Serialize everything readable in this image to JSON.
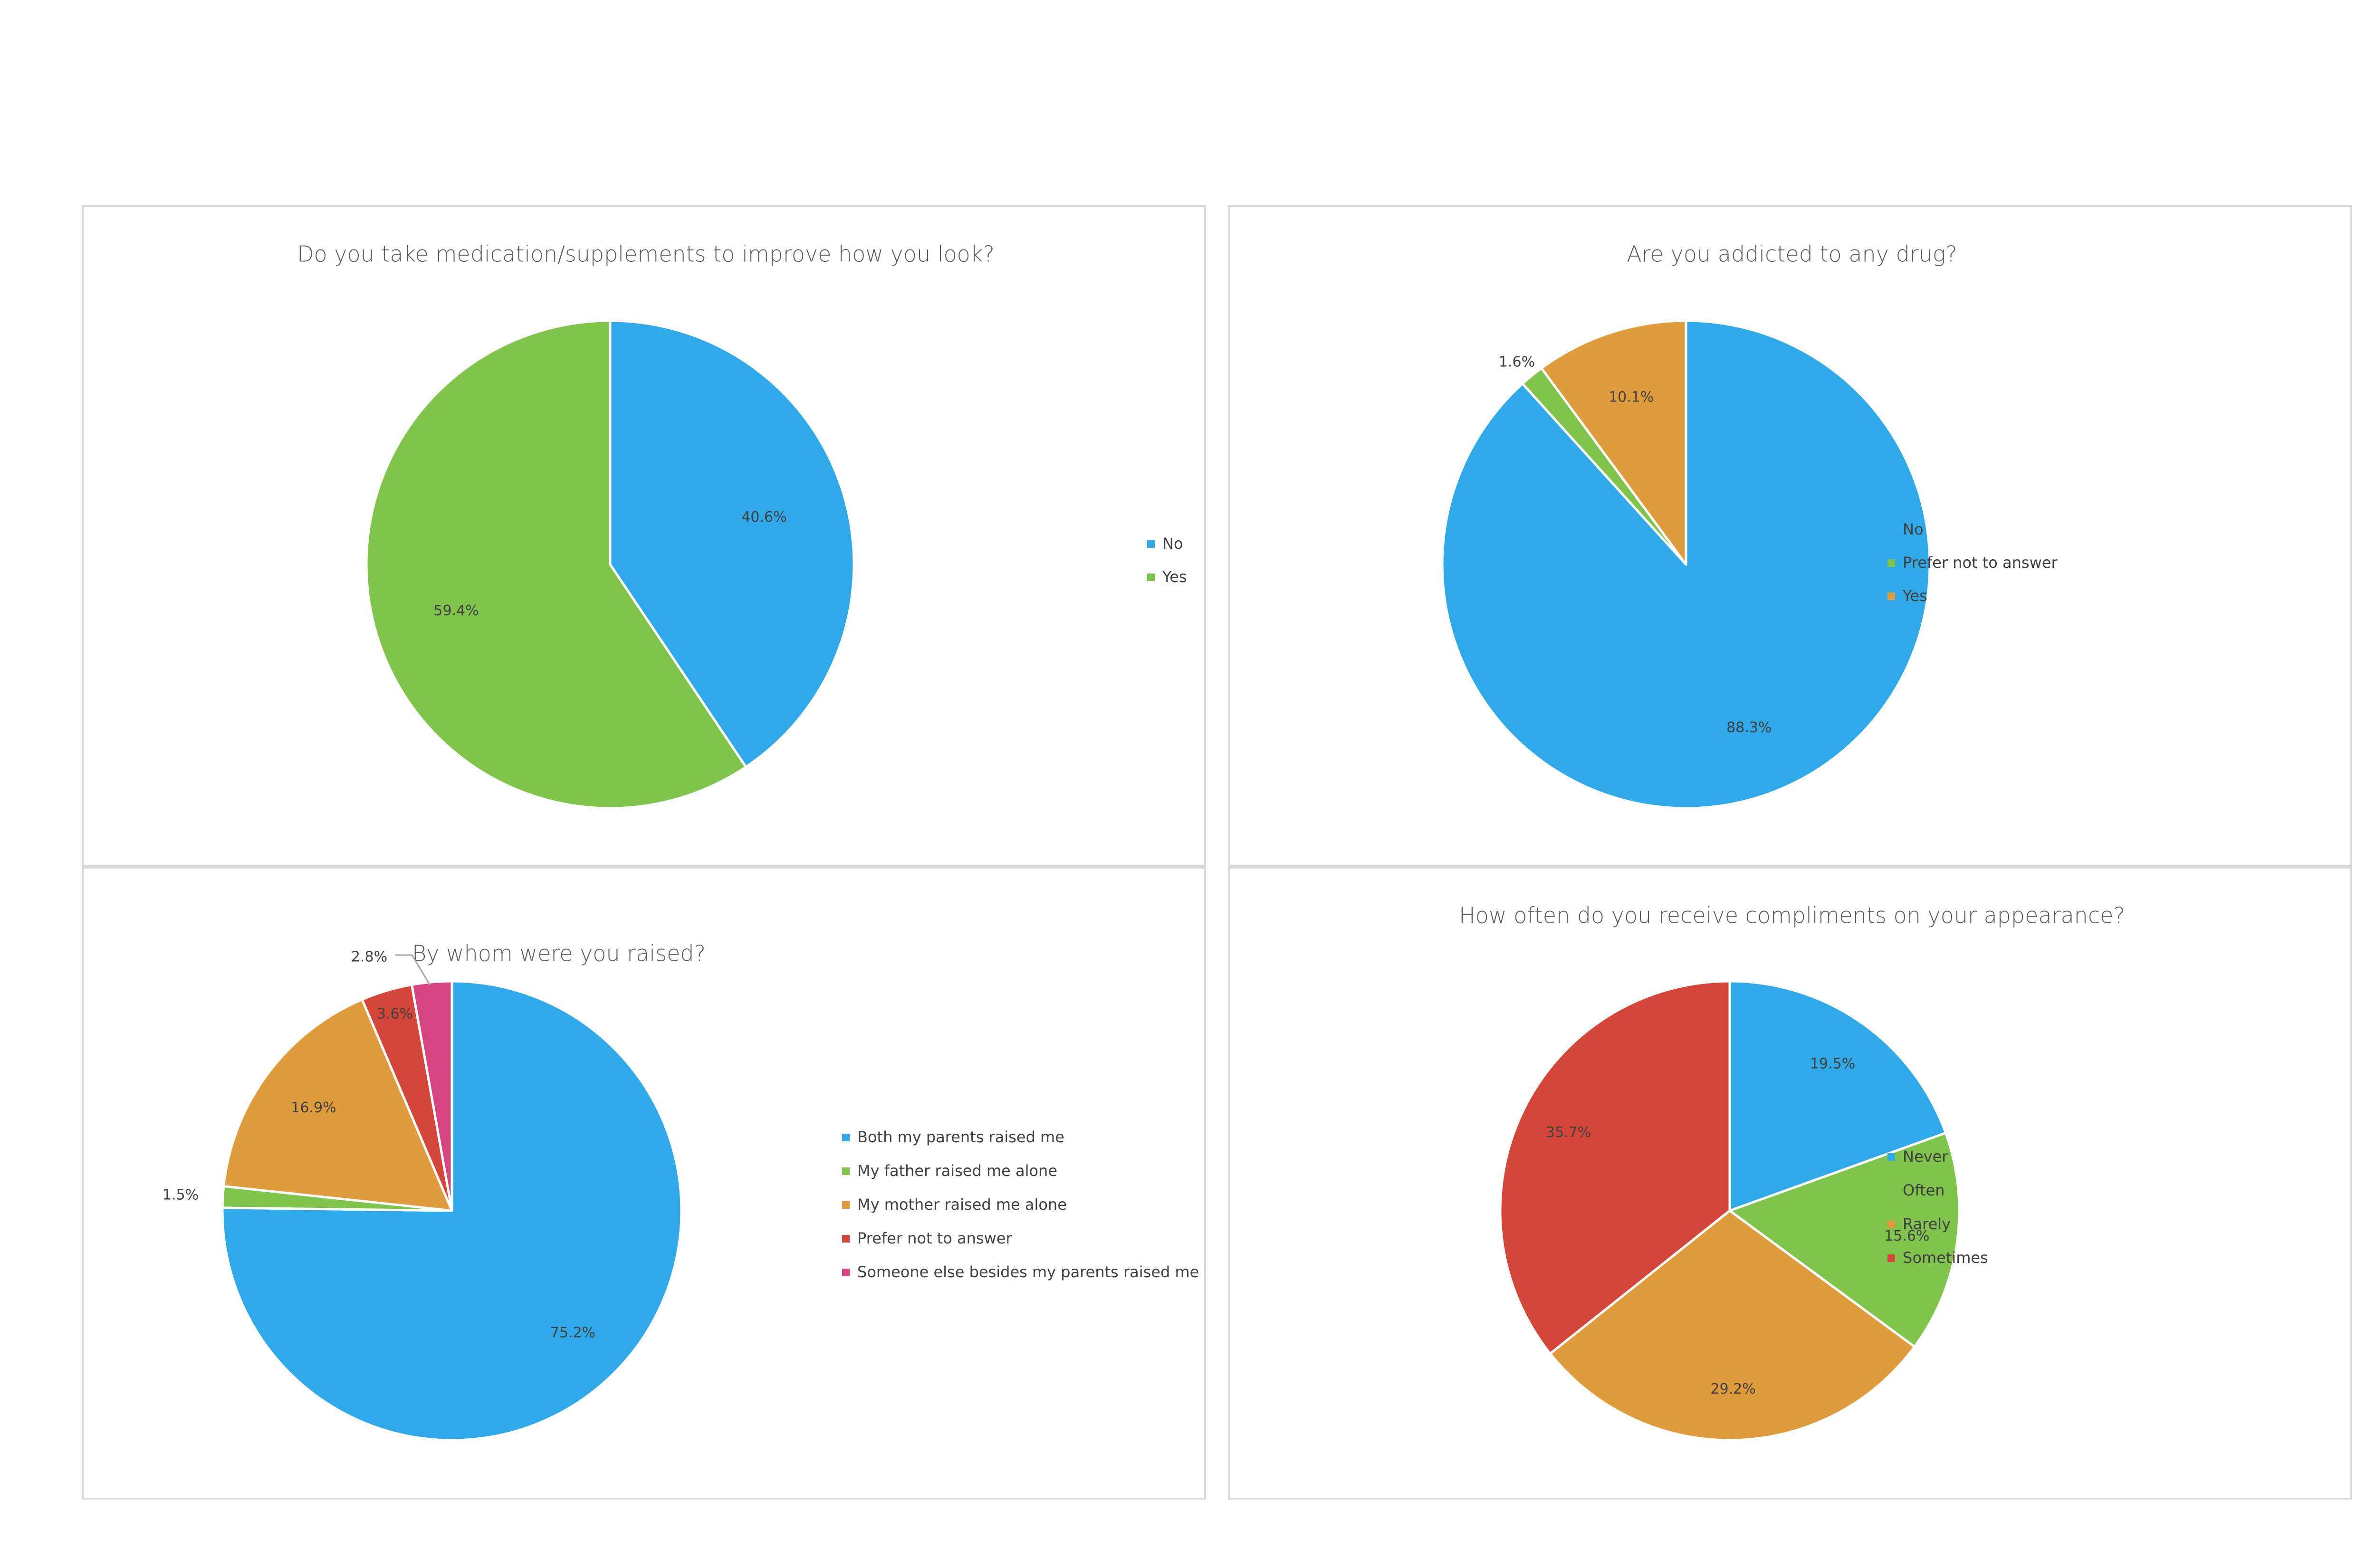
{
  "chart_data": [
    {
      "type": "pie",
      "title": "Do you take medication/supplements to improve how you look?",
      "categories": [
        "No",
        "Yes"
      ],
      "values": [
        40.6,
        59.4
      ],
      "labels": [
        "40.6%",
        "59.4%"
      ],
      "colors": [
        "#31a9e9",
        "#80c34d"
      ],
      "legend": "right"
    },
    {
      "type": "pie",
      "title": "Are you addicted to any drug?",
      "categories": [
        "No",
        "Prefer not to answer",
        "Yes"
      ],
      "values": [
        88.3,
        1.6,
        10.1
      ],
      "labels": [
        "88.3%",
        "1.6%",
        "10.1%"
      ],
      "colors": [
        "#31a9e9",
        "#80c34d",
        "#e09b3d"
      ],
      "legend": "right"
    },
    {
      "type": "pie",
      "title": "By whom were you raised?",
      "categories": [
        "Both my parents raised me",
        "My father raised me alone",
        "My mother raised me alone",
        "Prefer not to answer",
        "Someone else besides my parents raised me"
      ],
      "values": [
        75.2,
        1.5,
        16.9,
        3.6,
        2.8
      ],
      "labels": [
        "75.2%",
        "1.5%",
        "16.9%",
        "3.6%",
        "2.8%"
      ],
      "colors": [
        "#31a9e9",
        "#80c34d",
        "#e09b3d",
        "#d4463a",
        "#d6457f"
      ],
      "legend": "right"
    },
    {
      "type": "pie",
      "title": "How often do you receive compliments on your appearance?",
      "categories": [
        "Never",
        "Often",
        "Rarely",
        "Sometimes"
      ],
      "values": [
        19.5,
        15.6,
        29.2,
        35.7
      ],
      "labels": [
        "19.5%",
        "15.6%",
        "29.2%",
        "35.7%"
      ],
      "colors": [
        "#31a9e9",
        "#80c34d",
        "#e09b3d",
        "#d4463a"
      ],
      "legend": "right"
    }
  ]
}
